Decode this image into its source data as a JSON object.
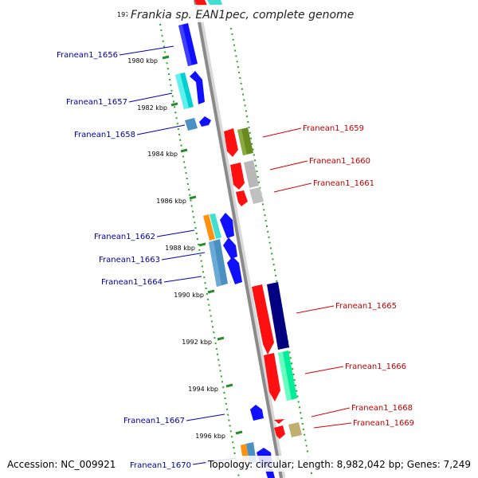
{
  "title": "Frankia sp. EAN1pec, complete genome",
  "title_partial_tick": "197",
  "accession": "Accession: NC_009921",
  "topology": "Topology: circular; Length: 8,982,042 bp; Genes: 7,249",
  "colors": {
    "axis": "#8c8c8c",
    "dotted_track": "#22aa22",
    "label_left": "#0000a0",
    "label_right": "#c00000"
  },
  "ticks": [
    {
      "label": "1980 kbp"
    },
    {
      "label": "1982 kbp"
    },
    {
      "label": "1984 kbp"
    },
    {
      "label": "1986 kbp"
    },
    {
      "label": "1988 kbp"
    },
    {
      "label": "1990 kbp"
    },
    {
      "label": "1992 kbp"
    },
    {
      "label": "1994 kbp"
    },
    {
      "label": "1996 kbp"
    }
  ],
  "genes_left": [
    {
      "label": "Franean1_1656"
    },
    {
      "label": "Franean1_1657"
    },
    {
      "label": "Franean1_1658"
    },
    {
      "label": "Franean1_1662"
    },
    {
      "label": "Franean1_1663"
    },
    {
      "label": "Franean1_1664"
    },
    {
      "label": "Franean1_1667"
    },
    {
      "label": "Franean1_1670"
    }
  ],
  "genes_right": [
    {
      "label": "Franean1_1659"
    },
    {
      "label": "Franean1_1660"
    },
    {
      "label": "Franean1_1661"
    },
    {
      "label": "Franean1_1665"
    },
    {
      "label": "Franean1_1666"
    },
    {
      "label": "Franean1_1668"
    },
    {
      "label": "Franean1_1669"
    }
  ]
}
